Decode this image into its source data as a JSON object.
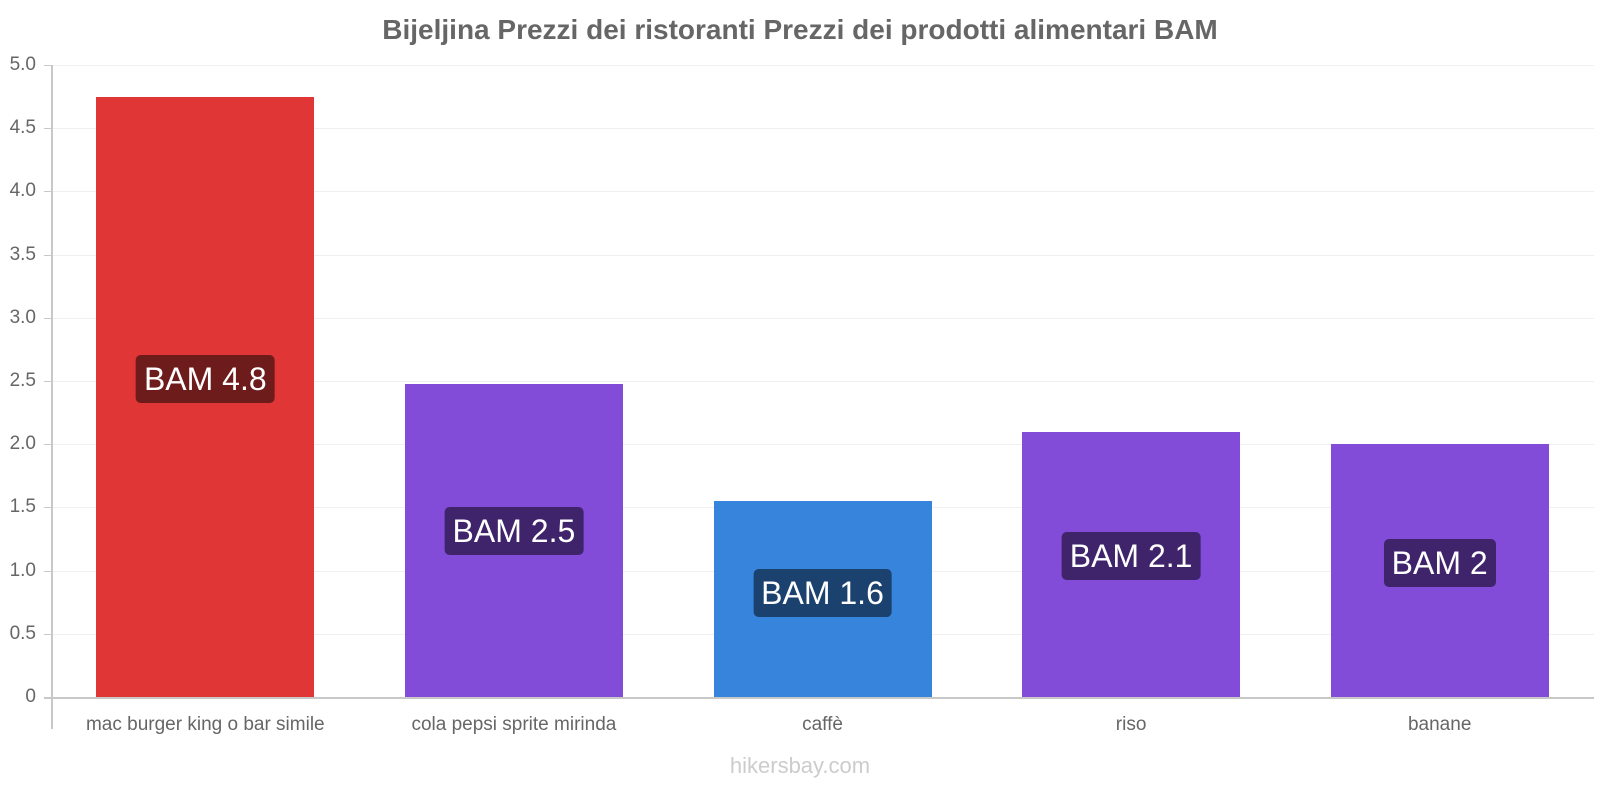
{
  "chart_data": {
    "type": "bar",
    "title": "Bijeljina Prezzi dei ristoranti Prezzi dei prodotti alimentari BAM",
    "xlabel": "",
    "ylabel": "",
    "ylim": [
      0,
      5
    ],
    "yticks": [
      "0",
      "0.5",
      "1.0",
      "1.5",
      "2.0",
      "2.5",
      "3.0",
      "3.5",
      "4.0",
      "4.5",
      "5.0"
    ],
    "grid": true,
    "legend": null,
    "categories": [
      "mac burger king o bar simile",
      "cola pepsi sprite mirinda",
      "caffè",
      "riso",
      "banane"
    ],
    "values": [
      4.75,
      2.48,
      1.55,
      2.1,
      2.0
    ],
    "data_labels": [
      "BAM 4.8",
      "BAM 2.5",
      "BAM 1.6",
      "BAM 2.1",
      "BAM 2"
    ],
    "bar_colors": [
      "#e03636",
      "#824bd8",
      "#3684dc",
      "#824bd8",
      "#824bd8"
    ],
    "label_colors": [
      "#6e1b1b",
      "#3f246b",
      "#1b426e",
      "#3f246b",
      "#3f246b"
    ]
  },
  "watermark": "hikersbay.com"
}
